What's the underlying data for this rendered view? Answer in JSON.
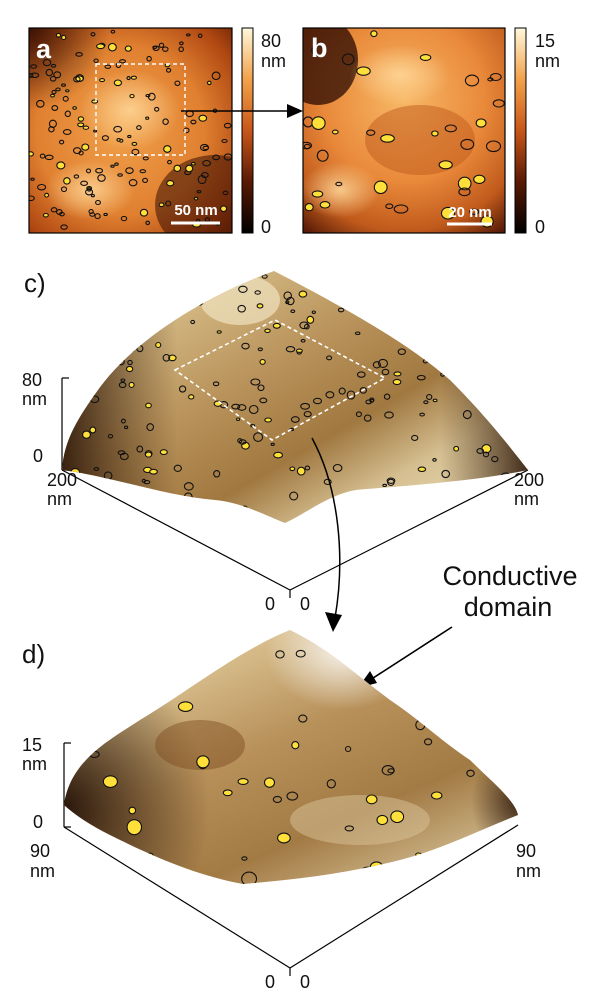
{
  "panels": {
    "a": {
      "letter": "a",
      "scale_bar": "50 nm",
      "colorbar": {
        "max": "80",
        "unit": "nm",
        "min": "0"
      }
    },
    "b": {
      "letter": "b",
      "scale_bar": "20 nm",
      "colorbar": {
        "max": "15",
        "unit": "nm",
        "min": "0"
      }
    },
    "c": {
      "label": "c)",
      "z_max": "80",
      "z_unit": "nm",
      "z_min": "0",
      "x_max": "200",
      "y_max": "200",
      "x_unit": "nm",
      "y_unit": "nm",
      "x_origin": "0",
      "y_origin": "0"
    },
    "d": {
      "label": "d)",
      "z_max": "15",
      "z_unit": "nm",
      "z_min": "0",
      "x_max": "90",
      "y_max": "90",
      "x_unit": "nm",
      "y_unit": "nm",
      "x_origin": "0",
      "y_origin": "0"
    }
  },
  "annotation": {
    "line1": "Conductive",
    "line2": "domain"
  },
  "colors": {
    "afm_dark": "#2a0c02",
    "afm_mid": "#c8561a",
    "afm_light": "#ffe8a8",
    "domain_fill": "#ffe03a",
    "domain_outline": "#111111",
    "surface_light": "#f3ead6",
    "surface_mid": "#b08240",
    "surface_dark": "#2a1406"
  }
}
